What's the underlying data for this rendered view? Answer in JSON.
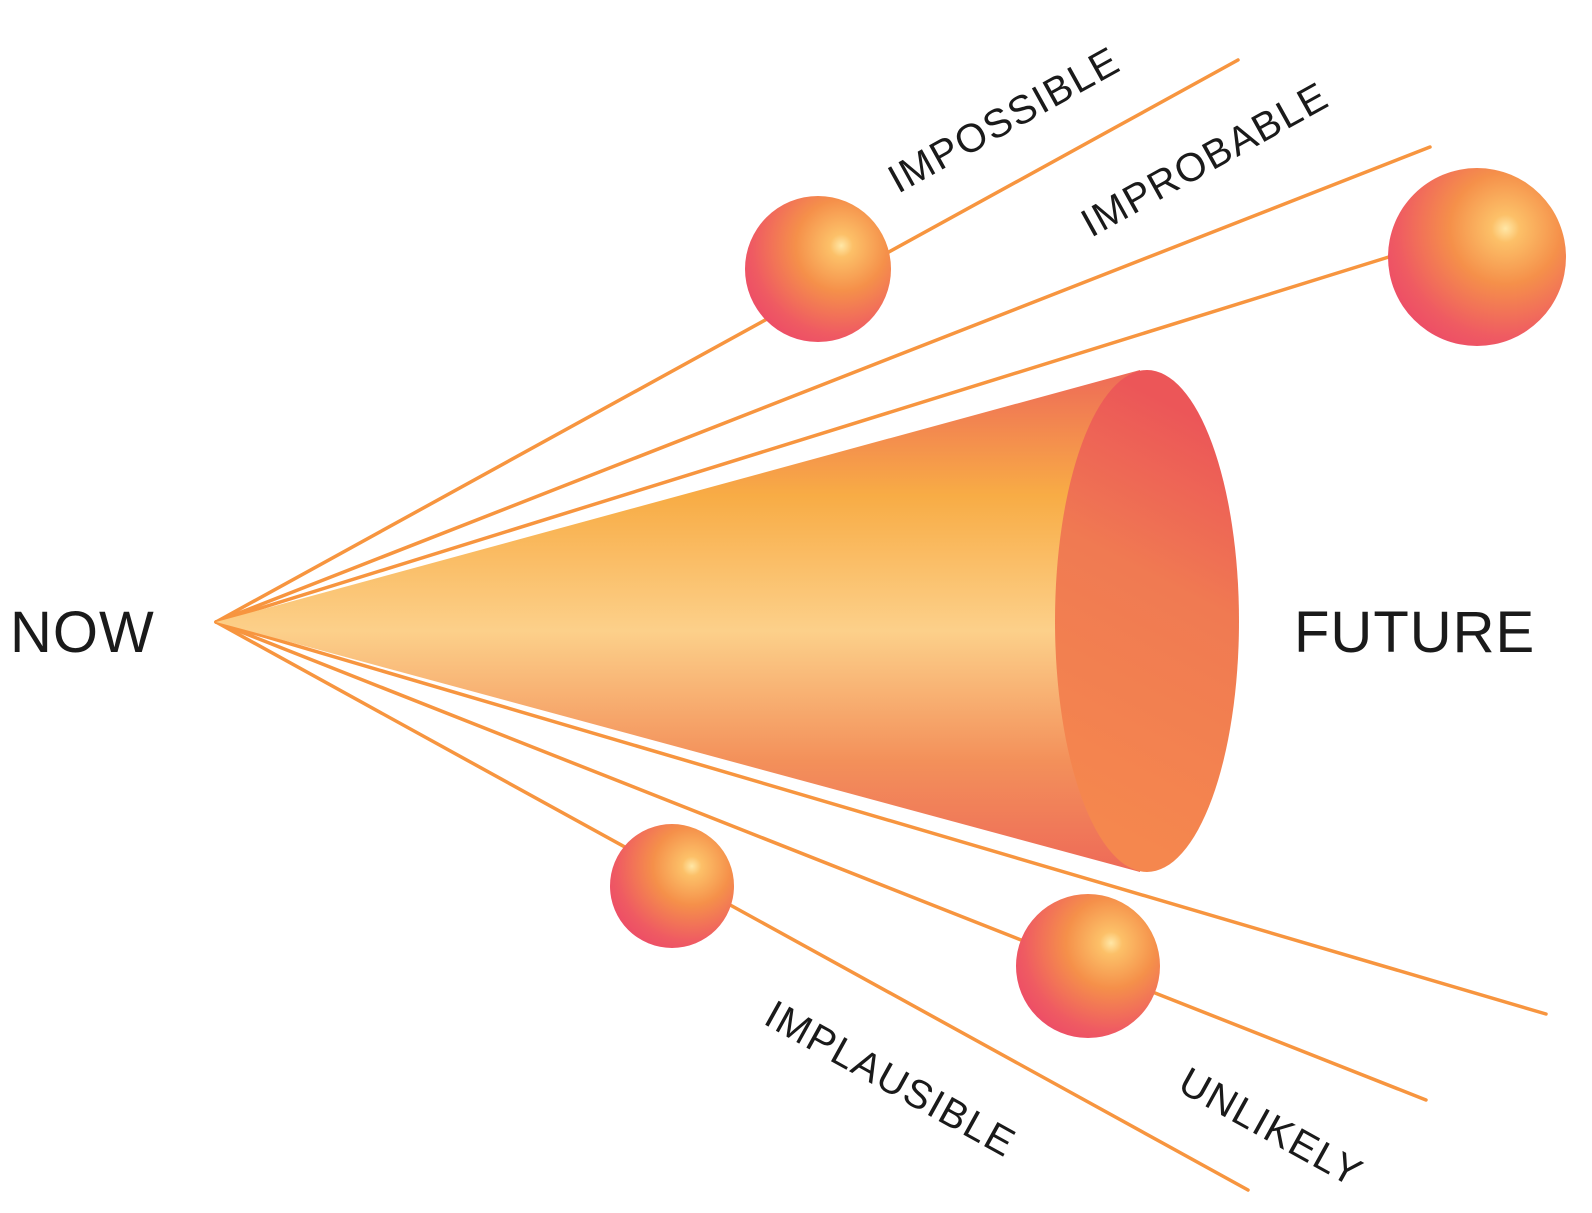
{
  "labels": {
    "now": "NOW",
    "future": "FUTURE",
    "impossible": "IMPOSSIBLE",
    "improbable": "IMPROBABLE",
    "implausible": "IMPLAUSIBLE",
    "unlikely": "UNLIKELY"
  },
  "colors": {
    "ray": "#f7953f",
    "cone_light": "#fcd08a",
    "cone_mid": "#f8ac45",
    "cone_dark": "#ee6a58",
    "cone_base": "#f07a52",
    "sphere_highlight": "#ffe39a",
    "sphere_mid": "#f5904a",
    "sphere_dark": "#ef4d68",
    "text": "#1a1a1a"
  }
}
